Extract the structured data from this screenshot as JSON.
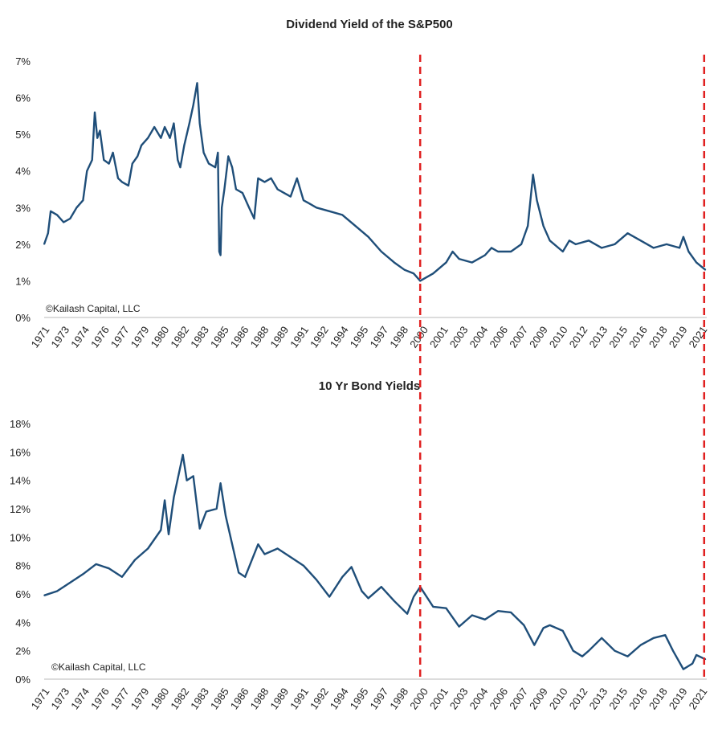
{
  "chart_data": [
    {
      "type": "line",
      "title": "Dividend Yield of the S&P500",
      "watermark": "©Kailash Capital, LLC",
      "ylim": [
        0,
        7
      ],
      "y_ticks": [
        "0%",
        "1%",
        "2%",
        "3%",
        "4%",
        "5%",
        "6%",
        "7%"
      ],
      "x_ticks": [
        "1971",
        "1973",
        "1974",
        "1976",
        "1977",
        "1979",
        "1980",
        "1982",
        "1983",
        "1985",
        "1986",
        "1988",
        "1989",
        "1991",
        "1992",
        "1994",
        "1995",
        "1997",
        "1998",
        "2000",
        "2001",
        "2003",
        "2004",
        "2006",
        "2007",
        "2009",
        "2010",
        "2012",
        "2013",
        "2015",
        "2016",
        "2018",
        "2019",
        "2021"
      ],
      "grid": false,
      "line_color": "#1f4e79",
      "marker_color": "#e02020",
      "vertical_markers": [
        2000,
        2021.9
      ],
      "series": [
        {
          "x": [
            1971,
            1971.3,
            1971.5,
            1972,
            1972.5,
            1973,
            1973.5,
            1974,
            1974.3,
            1974.7,
            1974.9,
            1975.1,
            1975.3,
            1975.6,
            1976,
            1976.3,
            1976.7,
            1977,
            1977.5,
            1977.8,
            1978.2,
            1978.5,
            1979,
            1979.5,
            1980,
            1980.3,
            1980.7,
            1981,
            1981.3,
            1981.5,
            1981.8,
            1982.2,
            1982.5,
            1982.8,
            1983,
            1983.3,
            1983.7,
            1984.2,
            1984.4,
            1984.5,
            1984.6,
            1984.7,
            1984.9,
            1985.2,
            1985.5,
            1985.8,
            1986.3,
            1986.8,
            1987.2,
            1987.5,
            1988,
            1988.5,
            1989,
            1989.5,
            1990,
            1990.5,
            1991,
            1991.5,
            1992,
            1993,
            1994,
            1995,
            1996,
            1997,
            1998,
            1998.8,
            1999.5,
            2000,
            2001,
            2002,
            2002.5,
            2003,
            2004,
            2005,
            2005.5,
            2006,
            2007,
            2007.8,
            2008.3,
            2008.7,
            2009,
            2009.5,
            2010,
            2011,
            2011.5,
            2012,
            2013,
            2014,
            2015,
            2016,
            2017,
            2018,
            2019,
            2020,
            2020.3,
            2020.7,
            2021.3,
            2022
          ],
          "y": [
            2.0,
            2.3,
            2.9,
            2.8,
            2.6,
            2.7,
            3.0,
            3.2,
            4.0,
            4.3,
            5.6,
            4.9,
            5.1,
            4.3,
            4.2,
            4.5,
            3.8,
            3.7,
            3.6,
            4.2,
            4.4,
            4.7,
            4.9,
            5.2,
            4.9,
            5.2,
            4.9,
            5.3,
            4.3,
            4.1,
            4.7,
            5.3,
            5.8,
            6.4,
            5.3,
            4.5,
            4.2,
            4.1,
            4.5,
            1.8,
            1.7,
            3.0,
            3.5,
            4.4,
            4.1,
            3.5,
            3.4,
            3.0,
            2.7,
            3.8,
            3.7,
            3.8,
            3.5,
            3.4,
            3.3,
            3.8,
            3.2,
            3.1,
            3.0,
            2.9,
            2.8,
            2.5,
            2.2,
            1.8,
            1.5,
            1.3,
            1.2,
            1.0,
            1.2,
            1.5,
            1.8,
            1.6,
            1.5,
            1.7,
            1.9,
            1.8,
            1.8,
            2.0,
            2.5,
            3.9,
            3.2,
            2.5,
            2.1,
            1.8,
            2.1,
            2.0,
            2.1,
            1.9,
            2.0,
            2.3,
            2.1,
            1.9,
            2.0,
            1.9,
            2.2,
            1.8,
            1.5,
            1.3
          ]
        }
      ]
    },
    {
      "type": "line",
      "title": "10 Yr Bond Yields",
      "watermark": "©Kailash Capital, LLC",
      "ylim": [
        0,
        18
      ],
      "y_ticks": [
        "0%",
        "2%",
        "4%",
        "6%",
        "8%",
        "10%",
        "12%",
        "14%",
        "16%",
        "18%"
      ],
      "x_ticks": [
        "1971",
        "1973",
        "1974",
        "1976",
        "1977",
        "1979",
        "1980",
        "1982",
        "1983",
        "1985",
        "1986",
        "1988",
        "1989",
        "1991",
        "1992",
        "1994",
        "1995",
        "1997",
        "1998",
        "2000",
        "2001",
        "2003",
        "2004",
        "2006",
        "2007",
        "2009",
        "2010",
        "2012",
        "2013",
        "2015",
        "2016",
        "2018",
        "2019",
        "2021"
      ],
      "grid": false,
      "line_color": "#1f4e79",
      "marker_color": "#e02020",
      "vertical_markers": [
        2000,
        2021.9
      ],
      "series": [
        {
          "x": [
            1971,
            1972,
            1973,
            1974,
            1975,
            1976,
            1977,
            1978,
            1979,
            1980,
            1980.3,
            1980.6,
            1981,
            1981.7,
            1982,
            1982.5,
            1983,
            1983.5,
            1984.3,
            1984.6,
            1985,
            1986,
            1986.5,
            1987.5,
            1988,
            1989,
            1990,
            1991,
            1992,
            1993,
            1994,
            1994.7,
            1995.5,
            1996,
            1997,
            1998,
            1999,
            1999.5,
            2000,
            2001,
            2002,
            2003,
            2004,
            2005,
            2006,
            2007,
            2008,
            2008.8,
            2009.5,
            2010,
            2011,
            2011.8,
            2012.5,
            2013,
            2014,
            2015,
            2016,
            2017,
            2018,
            2018.9,
            2019.5,
            2020.3,
            2021,
            2021.3,
            2022
          ],
          "y": [
            5.9,
            6.2,
            6.8,
            7.4,
            8.1,
            7.8,
            7.2,
            8.4,
            9.2,
            10.5,
            12.6,
            10.2,
            12.8,
            15.8,
            14.0,
            14.3,
            10.6,
            11.8,
            12.0,
            13.8,
            11.5,
            7.5,
            7.2,
            9.5,
            8.8,
            9.2,
            8.6,
            8.0,
            7.0,
            5.8,
            7.2,
            7.9,
            6.2,
            5.7,
            6.5,
            5.5,
            4.6,
            5.8,
            6.5,
            5.1,
            5.0,
            3.7,
            4.5,
            4.2,
            4.8,
            4.7,
            3.8,
            2.4,
            3.6,
            3.8,
            3.4,
            2.0,
            1.6,
            2.0,
            2.9,
            2.0,
            1.6,
            2.4,
            2.9,
            3.1,
            2.0,
            0.7,
            1.1,
            1.7,
            1.4
          ]
        }
      ]
    }
  ]
}
